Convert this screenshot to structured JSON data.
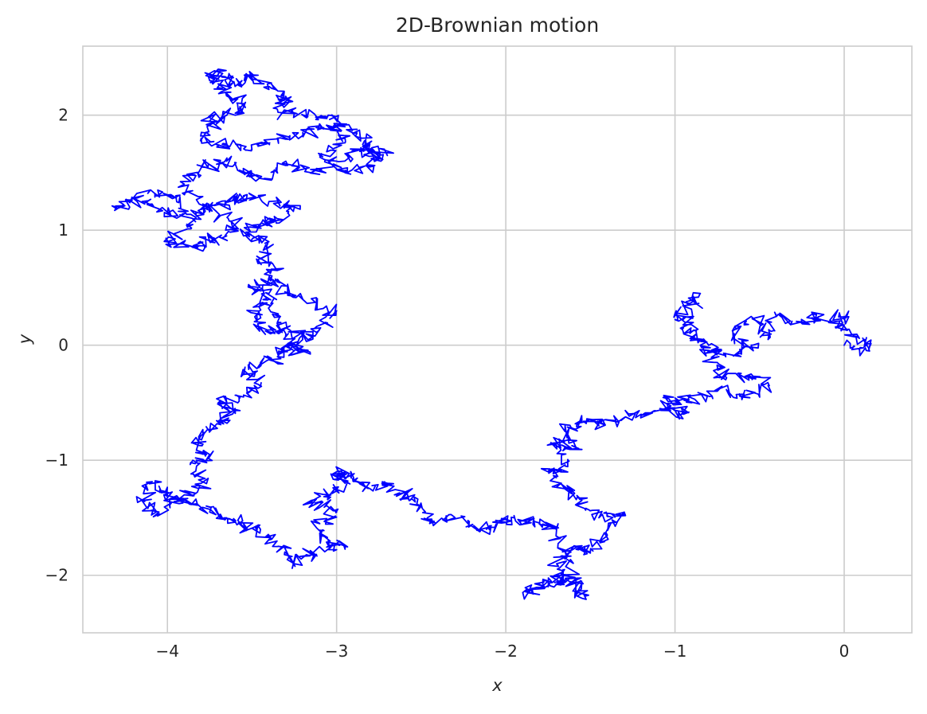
{
  "chart_data": {
    "type": "line",
    "title": "2D-Brownian motion",
    "xlabel": "x",
    "ylabel": "y",
    "xlim": [
      -4.5,
      0.4
    ],
    "ylim": [
      -2.5,
      2.6
    ],
    "xticks": [
      -4,
      -3,
      -2,
      -1,
      0
    ],
    "xtick_labels": [
      "−4",
      "−3",
      "−2",
      "−1",
      "0"
    ],
    "yticks": [
      -2,
      -1,
      0,
      1,
      2
    ],
    "ytick_labels": [
      "−2",
      "−1",
      "0",
      "1",
      "2"
    ],
    "grid": true,
    "legend": "none",
    "color": "#0000ff",
    "series": [
      {
        "waypoints": [
          [
            0.0,
            0.0
          ],
          [
            0.15,
            -0.05
          ],
          [
            0.12,
            0.05
          ],
          [
            -0.05,
            0.15
          ],
          [
            0.0,
            0.25
          ],
          [
            -0.15,
            0.25
          ],
          [
            -0.25,
            0.2
          ],
          [
            -0.4,
            0.25
          ],
          [
            -0.45,
            0.05
          ],
          [
            -0.55,
            0.25
          ],
          [
            -0.65,
            0.1
          ],
          [
            -0.55,
            0.0
          ],
          [
            -0.7,
            -0.1
          ],
          [
            -0.85,
            0.05
          ],
          [
            -0.95,
            0.25
          ],
          [
            -0.85,
            0.45
          ],
          [
            -0.98,
            0.3
          ],
          [
            -0.95,
            0.15
          ],
          [
            -0.85,
            0.0
          ],
          [
            -0.75,
            -0.15
          ],
          [
            -0.7,
            -0.3
          ],
          [
            -0.55,
            -0.25
          ],
          [
            -0.45,
            -0.35
          ],
          [
            -0.6,
            -0.45
          ],
          [
            -0.75,
            -0.4
          ],
          [
            -0.9,
            -0.5
          ],
          [
            -1.05,
            -0.45
          ],
          [
            -0.95,
            -0.6
          ],
          [
            -1.05,
            -0.55
          ],
          [
            -1.2,
            -0.6
          ],
          [
            -1.35,
            -0.65
          ],
          [
            -1.45,
            -0.7
          ],
          [
            -1.55,
            -0.65
          ],
          [
            -1.65,
            -0.75
          ],
          [
            -1.6,
            -0.9
          ],
          [
            -1.72,
            -0.85
          ],
          [
            -1.65,
            -1.05
          ],
          [
            -1.75,
            -1.1
          ],
          [
            -1.65,
            -1.25
          ],
          [
            -1.55,
            -1.35
          ],
          [
            -1.45,
            -1.5
          ],
          [
            -1.3,
            -1.45
          ],
          [
            -1.4,
            -1.65
          ],
          [
            -1.5,
            -1.8
          ],
          [
            -1.6,
            -1.75
          ],
          [
            -1.7,
            -1.9
          ],
          [
            -1.65,
            -2.05
          ],
          [
            -1.75,
            -2.1
          ],
          [
            -1.9,
            -2.15
          ],
          [
            -1.75,
            -2.05
          ],
          [
            -1.6,
            -2.05
          ],
          [
            -1.55,
            -2.2
          ],
          [
            -1.65,
            -1.85
          ],
          [
            -1.7,
            -1.6
          ],
          [
            -1.8,
            -1.55
          ],
          [
            -1.95,
            -1.5
          ],
          [
            -2.05,
            -1.55
          ],
          [
            -2.15,
            -1.6
          ],
          [
            -2.3,
            -1.5
          ],
          [
            -2.45,
            -1.55
          ],
          [
            -2.5,
            -1.4
          ],
          [
            -2.6,
            -1.3
          ],
          [
            -2.7,
            -1.2
          ],
          [
            -2.8,
            -1.25
          ],
          [
            -2.9,
            -1.15
          ],
          [
            -3.0,
            -1.1
          ],
          [
            -2.95,
            -1.2
          ],
          [
            -3.05,
            -1.3
          ],
          [
            -3.15,
            -1.35
          ],
          [
            -3.0,
            -1.45
          ],
          [
            -3.1,
            -1.55
          ],
          [
            -3.05,
            -1.7
          ],
          [
            -2.95,
            -1.75
          ],
          [
            -3.15,
            -1.8
          ],
          [
            -3.25,
            -1.9
          ],
          [
            -3.35,
            -1.75
          ],
          [
            -3.45,
            -1.6
          ],
          [
            -3.55,
            -1.55
          ],
          [
            -3.65,
            -1.5
          ],
          [
            -3.75,
            -1.45
          ],
          [
            -3.9,
            -1.35
          ],
          [
            -4.0,
            -1.3
          ],
          [
            -4.1,
            -1.2
          ],
          [
            -4.15,
            -1.35
          ],
          [
            -4.05,
            -1.45
          ],
          [
            -3.9,
            -1.3
          ],
          [
            -3.8,
            -1.2
          ],
          [
            -3.85,
            -1.0
          ],
          [
            -3.75,
            -0.95
          ],
          [
            -3.85,
            -0.85
          ],
          [
            -3.75,
            -0.75
          ],
          [
            -3.65,
            -0.65
          ],
          [
            -3.6,
            -0.55
          ],
          [
            -3.7,
            -0.5
          ],
          [
            -3.55,
            -0.45
          ],
          [
            -3.45,
            -0.35
          ],
          [
            -3.55,
            -0.25
          ],
          [
            -3.45,
            -0.15
          ],
          [
            -3.35,
            -0.1
          ],
          [
            -3.3,
            0.0
          ],
          [
            -3.2,
            -0.05
          ],
          [
            -3.3,
            0.1
          ],
          [
            -3.45,
            0.15
          ],
          [
            -3.5,
            0.3
          ],
          [
            -3.4,
            0.4
          ],
          [
            -3.5,
            0.5
          ],
          [
            -3.35,
            0.55
          ],
          [
            -3.2,
            0.4
          ],
          [
            -3.0,
            0.3
          ],
          [
            -3.1,
            0.15
          ],
          [
            -3.2,
            0.05
          ],
          [
            -3.35,
            0.2
          ],
          [
            -3.4,
            0.45
          ],
          [
            -3.35,
            0.65
          ],
          [
            -3.45,
            0.75
          ],
          [
            -3.4,
            0.9
          ],
          [
            -3.55,
            0.95
          ],
          [
            -3.45,
            1.05
          ],
          [
            -3.35,
            1.1
          ],
          [
            -3.25,
            1.2
          ],
          [
            -3.4,
            1.25
          ],
          [
            -3.55,
            1.3
          ],
          [
            -3.65,
            1.25
          ],
          [
            -3.75,
            1.2
          ],
          [
            -3.85,
            1.1
          ],
          [
            -4.0,
            1.15
          ],
          [
            -4.15,
            1.25
          ],
          [
            -4.3,
            1.2
          ],
          [
            -4.1,
            1.35
          ],
          [
            -3.95,
            1.3
          ],
          [
            -3.85,
            1.05
          ],
          [
            -4.0,
            0.9
          ],
          [
            -3.85,
            0.85
          ],
          [
            -3.75,
            0.9
          ],
          [
            -3.65,
            0.95
          ],
          [
            -3.6,
            1.05
          ],
          [
            -3.75,
            1.2
          ],
          [
            -3.9,
            1.4
          ],
          [
            -3.8,
            1.55
          ],
          [
            -3.65,
            1.6
          ],
          [
            -3.55,
            1.5
          ],
          [
            -3.45,
            1.45
          ],
          [
            -3.3,
            1.6
          ],
          [
            -3.15,
            1.5
          ],
          [
            -3.0,
            1.6
          ],
          [
            -2.85,
            1.7
          ],
          [
            -2.75,
            1.65
          ],
          [
            -2.8,
            1.55
          ],
          [
            -2.95,
            1.5
          ],
          [
            -3.1,
            1.65
          ],
          [
            -2.95,
            1.8
          ],
          [
            -3.05,
            1.9
          ],
          [
            -3.2,
            1.85
          ],
          [
            -3.35,
            1.8
          ],
          [
            -3.5,
            1.7
          ],
          [
            -3.65,
            1.75
          ],
          [
            -3.8,
            1.8
          ],
          [
            -3.75,
            1.95
          ],
          [
            -3.6,
            2.0
          ],
          [
            -3.55,
            2.1
          ],
          [
            -3.65,
            2.2
          ],
          [
            -3.75,
            2.3
          ],
          [
            -3.7,
            2.4
          ],
          [
            -3.6,
            2.25
          ],
          [
            -3.5,
            2.35
          ],
          [
            -3.4,
            2.25
          ],
          [
            -3.3,
            2.15
          ],
          [
            -3.35,
            2.05
          ],
          [
            -3.2,
            2.0
          ],
          [
            -3.05,
            2.0
          ],
          [
            -2.95,
            1.9
          ],
          [
            -2.85,
            1.8
          ],
          [
            -2.8,
            1.7
          ],
          [
            -2.7,
            1.65
          ]
        ]
      }
    ]
  }
}
